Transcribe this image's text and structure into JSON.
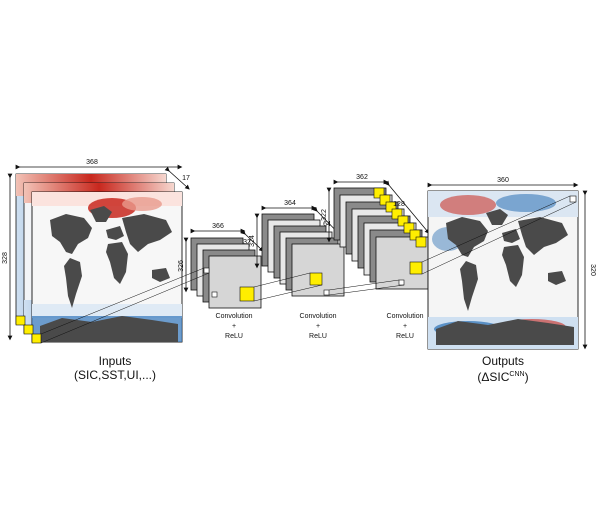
{
  "input_block": {
    "width_label": "368",
    "height_label": "328",
    "depth_label": "17",
    "caption_line1": "Inputs",
    "caption_line2": "(SIC,SST,UI,...)"
  },
  "conv_block_1": {
    "width_label": "366",
    "height_label": "326",
    "depth_label": "32",
    "op_line1": "Convolution",
    "op_line2": "+",
    "op_line3": "ReLU"
  },
  "conv_block_2": {
    "width_label": "364",
    "height_label": "324",
    "depth_label": "64",
    "op_line1": "Convolution",
    "op_line2": "+",
    "op_line3": "ReLU"
  },
  "conv_block_3": {
    "width_label": "362",
    "height_label": "322",
    "depth_label": "128",
    "op_line1": "Convolution",
    "op_line2": "+",
    "op_line3": "ReLU"
  },
  "output_block": {
    "width_label": "360",
    "height_label": "320",
    "caption_line1": "Outputs",
    "caption_prefix": "(ΔSIC",
    "caption_superscript": "CNN",
    "caption_suffix": ")"
  },
  "colors": {
    "land": "#4a4a4a",
    "highlight": "#ffee00",
    "feature_dark": "#8a8a8a",
    "feature_light": "#d6d6d6",
    "warm": "#c8281e",
    "cool": "#2a6fb4"
  }
}
